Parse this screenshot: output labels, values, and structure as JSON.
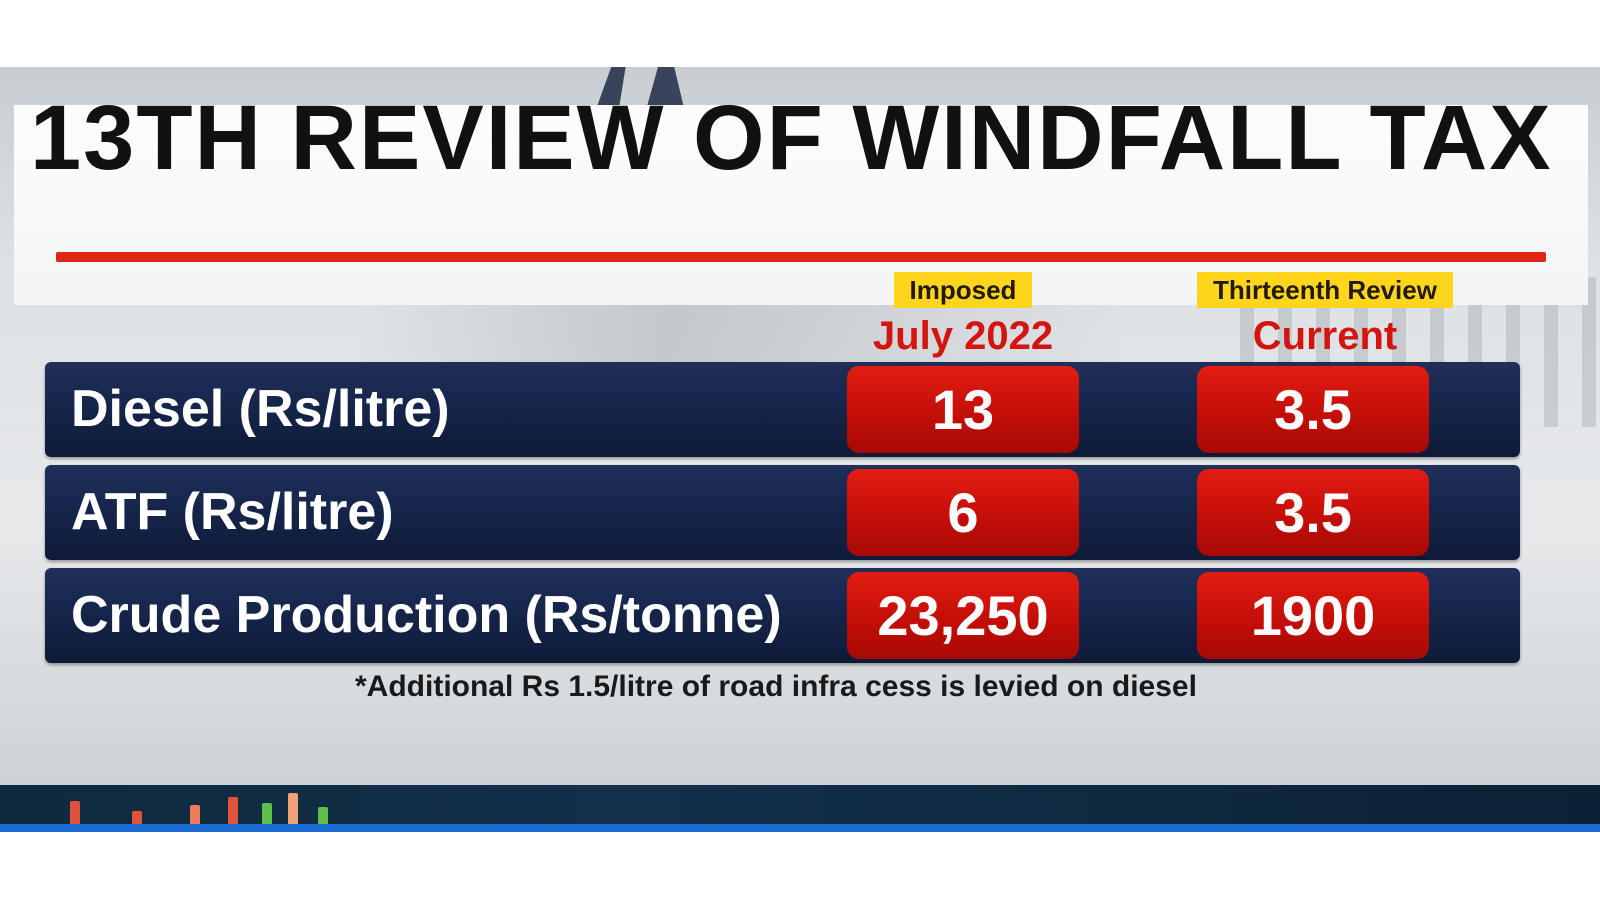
{
  "title": "13TH REVIEW OF WINDFALL TAX",
  "columns": [
    {
      "tag": "Imposed",
      "subtitle": "July 2022"
    },
    {
      "tag": "Thirteenth Review",
      "subtitle": "Current"
    }
  ],
  "rows": [
    {
      "label": "Diesel (Rs/litre)",
      "imposed": "13",
      "current": "3.5"
    },
    {
      "label": "ATF (Rs/litre)",
      "imposed": "6",
      "current": "3.5"
    },
    {
      "label": "Crude Production (Rs/tonne)",
      "imposed": "23,250",
      "current": "1900"
    }
  ],
  "footnote": "*Additional Rs 1.5/litre of road infra cess is levied on diesel",
  "colors": {
    "title_rule": "#e02418",
    "row_background": "#152449",
    "value_cell": "#c40e08",
    "column_tag": "#ffd61c",
    "column_subtitle": "#d4140e",
    "bottom_bar": "#1558b8"
  }
}
